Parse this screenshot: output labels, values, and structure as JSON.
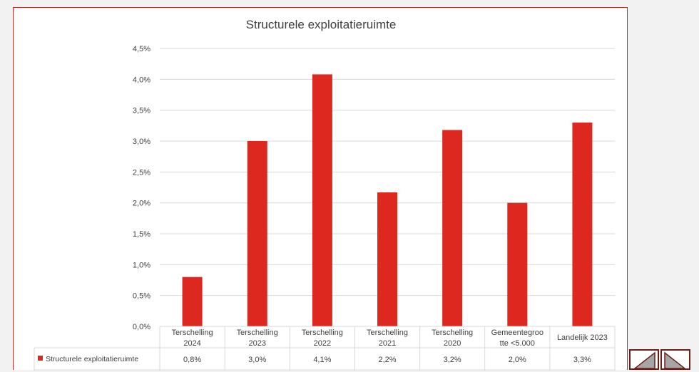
{
  "chart_data": {
    "type": "bar",
    "title": "Structurele exploitatieruimte",
    "categories": [
      [
        "Terschelling",
        "2024"
      ],
      [
        "Terschelling",
        "2023"
      ],
      [
        "Terschelling",
        "2022"
      ],
      [
        "Terschelling",
        "2021"
      ],
      [
        "Terschelling",
        "2020"
      ],
      [
        "Gemeentegroo",
        "tte <5.000"
      ],
      [
        "Landelijk 2023"
      ]
    ],
    "series": [
      {
        "name": "Structurele exploitatieruimte",
        "values": [
          0.8,
          3.0,
          4.08,
          2.17,
          3.18,
          2.0,
          3.3
        ],
        "table_labels": [
          "0,8%",
          "3,0%",
          "4,1%",
          "2,2%",
          "3,2%",
          "2,0%",
          "3,3%"
        ],
        "color": "#dc281e"
      }
    ],
    "ylim": [
      0,
      4.5
    ],
    "y_ticks": [
      {
        "value": 0,
        "label": "0,0%"
      },
      {
        "value": 0.5,
        "label": "0,5%"
      },
      {
        "value": 1.0,
        "label": "1,0%"
      },
      {
        "value": 1.5,
        "label": "1,5%"
      },
      {
        "value": 2.0,
        "label": "2,0%"
      },
      {
        "value": 2.5,
        "label": "2,5%"
      },
      {
        "value": 3.0,
        "label": "3,0%"
      },
      {
        "value": 3.5,
        "label": "3,5%"
      },
      {
        "value": 4.0,
        "label": "4,0%"
      },
      {
        "value": 4.5,
        "label": "4,5%"
      }
    ],
    "grid": true,
    "data_table": true
  },
  "colors": {
    "bar": "#dc281e",
    "frame_border": "#c0302a",
    "gridline": "#d9d9d9",
    "text": "#404040",
    "nav_border": "#6b1f1a",
    "nav_fill": "#a6a6a6"
  },
  "nav": {
    "prev_icon": "triangle-left-icon",
    "next_icon": "triangle-right-icon"
  }
}
